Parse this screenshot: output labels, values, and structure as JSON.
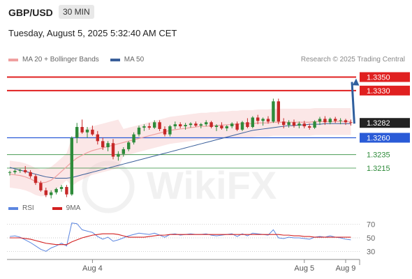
{
  "header": {
    "pair": "GBP/USD",
    "timeframe": "30 MIN",
    "datetime": "Tuesday, August 5, 2025 5:32:40 AM CET"
  },
  "legend": {
    "ma20": "MA 20 + Bollinger Bands",
    "ma50": "MA 50",
    "copyright": "Research © 2025 Trading Central",
    "rsi": "RSI",
    "ma9": "9MA"
  },
  "colors": {
    "resistance": "#e02020",
    "support": "#2a5bd7",
    "target_green": "#2e8b3a",
    "ma20": "#f0a0a0",
    "ma50": "#3a5f9a",
    "up": "#2e8b3a",
    "down": "#c62828",
    "rsi": "#5c86e0",
    "ma9": "#d32020"
  },
  "chart_data": {
    "type": "candlestick",
    "symbol": "GBP/USD",
    "interval": "30 MIN",
    "ylim": [
      1.3185,
      1.3365
    ],
    "levels": [
      {
        "price": 1.335,
        "label": "1.3350",
        "kind": "resistance"
      },
      {
        "price": 1.333,
        "label": "1.3330",
        "kind": "resistance"
      },
      {
        "price": 1.3282,
        "label": "1.3282",
        "kind": "current"
      },
      {
        "price": 1.326,
        "label": "1.3260",
        "kind": "support"
      },
      {
        "price": 1.3235,
        "label": "1.3235",
        "kind": "target"
      },
      {
        "price": 1.3215,
        "label": "1.3215",
        "kind": "target"
      }
    ],
    "candles": [
      [
        1.3208,
        1.3211,
        1.3204,
        1.3209
      ],
      [
        1.3209,
        1.3213,
        1.3206,
        1.3211
      ],
      [
        1.3211,
        1.3214,
        1.3208,
        1.3212
      ],
      [
        1.3212,
        1.3218,
        1.3207,
        1.3209
      ],
      [
        1.3209,
        1.3212,
        1.32,
        1.3203
      ],
      [
        1.3203,
        1.3206,
        1.319,
        1.3193
      ],
      [
        1.3193,
        1.3196,
        1.318,
        1.3182
      ],
      [
        1.3182,
        1.3186,
        1.3172,
        1.3175
      ],
      [
        1.3175,
        1.3182,
        1.317,
        1.3179
      ],
      [
        1.3179,
        1.3186,
        1.3176,
        1.3184
      ],
      [
        1.3184,
        1.319,
        1.318,
        1.3187
      ],
      [
        1.3187,
        1.319,
        1.3172,
        1.3176
      ],
      [
        1.3176,
        1.3262,
        1.3174,
        1.326
      ],
      [
        1.326,
        1.3282,
        1.3252,
        1.3276
      ],
      [
        1.3276,
        1.3287,
        1.3266,
        1.3268
      ],
      [
        1.3268,
        1.3276,
        1.326,
        1.3272
      ],
      [
        1.3272,
        1.3278,
        1.3263,
        1.3265
      ],
      [
        1.3265,
        1.327,
        1.325,
        1.3255
      ],
      [
        1.3255,
        1.326,
        1.3242,
        1.3246
      ],
      [
        1.3246,
        1.3255,
        1.324,
        1.3252
      ],
      [
        1.3252,
        1.3258,
        1.3228,
        1.3232
      ],
      [
        1.3232,
        1.324,
        1.3226,
        1.3236
      ],
      [
        1.3236,
        1.3246,
        1.3232,
        1.3243
      ],
      [
        1.3243,
        1.3255,
        1.324,
        1.3253
      ],
      [
        1.3253,
        1.3268,
        1.325,
        1.3265
      ],
      [
        1.3265,
        1.3278,
        1.3262,
        1.3275
      ],
      [
        1.3275,
        1.328,
        1.327,
        1.3277
      ],
      [
        1.3277,
        1.3282,
        1.3272,
        1.3275
      ],
      [
        1.3275,
        1.3286,
        1.3273,
        1.3283
      ],
      [
        1.3283,
        1.3286,
        1.327,
        1.3273
      ],
      [
        1.3273,
        1.3277,
        1.3262,
        1.3265
      ],
      [
        1.3265,
        1.3279,
        1.3262,
        1.3277
      ],
      [
        1.3277,
        1.3284,
        1.3273,
        1.328
      ],
      [
        1.328,
        1.3283,
        1.3274,
        1.3277
      ],
      [
        1.3277,
        1.3282,
        1.3272,
        1.3279
      ],
      [
        1.3279,
        1.3283,
        1.3275,
        1.3281
      ],
      [
        1.3281,
        1.3284,
        1.3276,
        1.3278
      ],
      [
        1.3278,
        1.3282,
        1.3274,
        1.328
      ],
      [
        1.328,
        1.3286,
        1.3277,
        1.3283
      ],
      [
        1.3283,
        1.3285,
        1.3274,
        1.3276
      ],
      [
        1.3276,
        1.328,
        1.327,
        1.3278
      ],
      [
        1.3278,
        1.3283,
        1.3272,
        1.3274
      ],
      [
        1.3274,
        1.3279,
        1.327,
        1.3277
      ],
      [
        1.3277,
        1.3283,
        1.3274,
        1.3281
      ],
      [
        1.3281,
        1.3284,
        1.327,
        1.3272
      ],
      [
        1.3272,
        1.3285,
        1.327,
        1.3283
      ],
      [
        1.3283,
        1.3289,
        1.3274,
        1.3276
      ],
      [
        1.3276,
        1.3292,
        1.3274,
        1.329
      ],
      [
        1.329,
        1.3294,
        1.328,
        1.3285
      ],
      [
        1.3285,
        1.329,
        1.3278,
        1.3288
      ],
      [
        1.3288,
        1.3292,
        1.3281,
        1.3284
      ],
      [
        1.3284,
        1.3318,
        1.3282,
        1.3314
      ],
      [
        1.3314,
        1.3318,
        1.328,
        1.3284
      ],
      [
        1.3284,
        1.3289,
        1.3274,
        1.3279
      ],
      [
        1.3279,
        1.3286,
        1.3275,
        1.3283
      ],
      [
        1.3283,
        1.3287,
        1.3275,
        1.3278
      ],
      [
        1.3278,
        1.3284,
        1.3274,
        1.3281
      ],
      [
        1.3281,
        1.3285,
        1.3274,
        1.3277
      ],
      [
        1.3277,
        1.3281,
        1.3272,
        1.3275
      ],
      [
        1.3275,
        1.3286,
        1.3273,
        1.3284
      ],
      [
        1.3284,
        1.3291,
        1.3279,
        1.3288
      ],
      [
        1.3288,
        1.3292,
        1.3279,
        1.3283
      ],
      [
        1.3283,
        1.329,
        1.328,
        1.3288
      ],
      [
        1.3288,
        1.3291,
        1.3282,
        1.3285
      ],
      [
        1.3285,
        1.3289,
        1.328,
        1.3286
      ],
      [
        1.3286,
        1.3288,
        1.3279,
        1.3283
      ],
      [
        1.3283,
        1.3287,
        1.3278,
        1.3282
      ]
    ],
    "ma20": [
      1.3206,
      1.3205,
      1.3204,
      1.3202,
      1.3199,
      1.3195,
      1.3193,
      1.3194,
      1.3197,
      1.3203,
      1.321,
      1.3217,
      1.3224,
      1.323,
      1.3234,
      1.3238,
      1.3241,
      1.3243,
      1.3245,
      1.3247,
      1.3249,
      1.3251,
      1.3253,
      1.3255,
      1.3257,
      1.3259,
      1.3261,
      1.3263,
      1.3265,
      1.3267,
      1.3269,
      1.3271,
      1.3272,
      1.3273,
      1.3274,
      1.3275,
      1.3276,
      1.3277,
      1.3277,
      1.3278,
      1.3278,
      1.3279,
      1.3279,
      1.328,
      1.328,
      1.3281,
      1.3281,
      1.3281,
      1.3282,
      1.3282,
      1.3282,
      1.3283,
      1.3283,
      1.3283,
      1.3283,
      1.3283,
      1.3283,
      1.3283,
      1.3283,
      1.3284,
      1.3284,
      1.3284,
      1.3284,
      1.3284,
      1.3284,
      1.3284,
      1.3284
    ],
    "ma50": [
      1.3216,
      1.3214,
      1.3212,
      1.321,
      1.3208,
      1.3206,
      1.3204,
      1.3202,
      1.3201,
      1.32,
      1.32,
      1.32,
      1.3201,
      1.3203,
      1.3205,
      1.3207,
      1.3209,
      1.3211,
      1.3213,
      1.3215,
      1.3217,
      1.3219,
      1.3221,
      1.3223,
      1.3225,
      1.3227,
      1.3229,
      1.3231,
      1.3233,
      1.3235,
      1.3237,
      1.3239,
      1.3241,
      1.3243,
      1.3245,
      1.3247,
      1.3249,
      1.3251,
      1.3253,
      1.3255,
      1.3257,
      1.3259,
      1.3261,
      1.3263,
      1.3265,
      1.3267,
      1.3269,
      1.3271,
      1.3272,
      1.3273,
      1.3274,
      1.3275,
      1.3276,
      1.3277,
      1.3278,
      1.3278,
      1.3279,
      1.3279,
      1.328,
      1.328,
      1.328,
      1.3281,
      1.3281,
      1.3281,
      1.3281,
      1.3281,
      1.3281
    ],
    "rsi": {
      "ylim": [
        20,
        80
      ],
      "ticks": [
        {
          "v": 70,
          "label": "70"
        },
        {
          "v": 50,
          "label": "50"
        },
        {
          "v": 30,
          "label": "30"
        }
      ],
      "rsi": [
        52,
        53,
        51,
        47,
        43,
        38,
        33,
        30,
        35,
        38,
        42,
        38,
        72,
        71,
        62,
        60,
        58,
        52,
        48,
        51,
        45,
        47,
        50,
        53,
        55,
        57,
        56,
        55,
        57,
        54,
        51,
        55,
        56,
        54,
        55,
        56,
        55,
        55,
        56,
        54,
        53,
        54,
        55,
        56,
        52,
        56,
        53,
        57,
        56,
        55,
        54,
        62,
        50,
        49,
        51,
        50,
        50,
        49,
        48,
        51,
        52,
        51,
        53,
        51,
        50,
        48,
        47
      ],
      "ma9": [
        50,
        50,
        50,
        49,
        48,
        46,
        44,
        42,
        41,
        40,
        40,
        40,
        44,
        47,
        50,
        52,
        54,
        55,
        56,
        56,
        56,
        55,
        53,
        51,
        51,
        51,
        51,
        52,
        53,
        54,
        54,
        55,
        55,
        55,
        55,
        55,
        55,
        55,
        55,
        55,
        55,
        55,
        55,
        55,
        55,
        55,
        55,
        55,
        55,
        55,
        55,
        55,
        55,
        54,
        54,
        53,
        53,
        52,
        52,
        51,
        51,
        51,
        51,
        51,
        51,
        51,
        51
      ]
    },
    "x_labels": [
      {
        "index": 16,
        "label": "Aug 4"
      },
      {
        "index": 57,
        "label": "Aug 5"
      },
      {
        "index": 65,
        "label": "Aug 9"
      }
    ],
    "projection": {
      "from_price": 1.3282,
      "to_price": 1.335
    },
    "watermark": "WikiFX"
  }
}
